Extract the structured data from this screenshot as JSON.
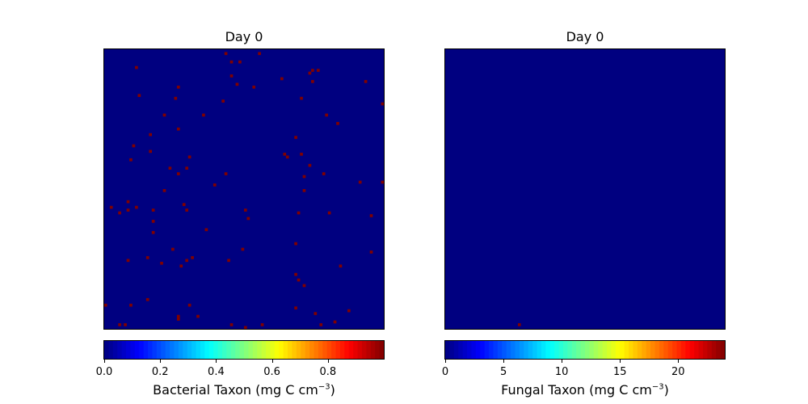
{
  "chart_data": [
    {
      "type": "heatmap",
      "title": "Day 0",
      "colormap": "jet",
      "grid": "off",
      "cbar_label_prefix": "Bacterial Taxon (mg C cm",
      "cbar_label_exp": "−3",
      "cbar_label_suffix": ")",
      "cbar_range": [
        0,
        1
      ],
      "cbar_ticks": [
        0.0,
        0.2,
        0.4,
        0.6,
        0.8
      ],
      "cbar_tick_labels": [
        "0.0",
        "0.2",
        "0.4",
        "0.6",
        "0.8"
      ],
      "grid_size": 100,
      "background_value": 0,
      "cell_value": 1,
      "nonzero_cells": [
        [
          1,
          43
        ],
        [
          1,
          55
        ],
        [
          4,
          48
        ],
        [
          4,
          45
        ],
        [
          6,
          11
        ],
        [
          7,
          76
        ],
        [
          7,
          74
        ],
        [
          8,
          73
        ],
        [
          9,
          45
        ],
        [
          10,
          63
        ],
        [
          11,
          74
        ],
        [
          11,
          93
        ],
        [
          12,
          47
        ],
        [
          13,
          26
        ],
        [
          13,
          53
        ],
        [
          16,
          12
        ],
        [
          17,
          25
        ],
        [
          17,
          70
        ],
        [
          18,
          42
        ],
        [
          19,
          99
        ],
        [
          23,
          21
        ],
        [
          23,
          79
        ],
        [
          23,
          35
        ],
        [
          26,
          83
        ],
        [
          28,
          26
        ],
        [
          30,
          16
        ],
        [
          31,
          68
        ],
        [
          34,
          10
        ],
        [
          36,
          16
        ],
        [
          37,
          64
        ],
        [
          38,
          65
        ],
        [
          37,
          70
        ],
        [
          38,
          30
        ],
        [
          39,
          9
        ],
        [
          41,
          73
        ],
        [
          42,
          23
        ],
        [
          42,
          29
        ],
        [
          44,
          78
        ],
        [
          44,
          43
        ],
        [
          44,
          26
        ],
        [
          45,
          71
        ],
        [
          47,
          91
        ],
        [
          47,
          99
        ],
        [
          48,
          39
        ],
        [
          50,
          71
        ],
        [
          50,
          21
        ],
        [
          54,
          8
        ],
        [
          55,
          28
        ],
        [
          56,
          2
        ],
        [
          57,
          8
        ],
        [
          58,
          5
        ],
        [
          56,
          11
        ],
        [
          57,
          17
        ],
        [
          57,
          29
        ],
        [
          57,
          50
        ],
        [
          58,
          69
        ],
        [
          58,
          80
        ],
        [
          59,
          95
        ],
        [
          60,
          51
        ],
        [
          61,
          17
        ],
        [
          64,
          36
        ],
        [
          65,
          17
        ],
        [
          69,
          68
        ],
        [
          71,
          24
        ],
        [
          71,
          49
        ],
        [
          72,
          95
        ],
        [
          74,
          15
        ],
        [
          75,
          8
        ],
        [
          75,
          29
        ],
        [
          74,
          31
        ],
        [
          75,
          44
        ],
        [
          76,
          20
        ],
        [
          77,
          27
        ],
        [
          77,
          84
        ],
        [
          80,
          68
        ],
        [
          82,
          69
        ],
        [
          84,
          71
        ],
        [
          89,
          15
        ],
        [
          91,
          0
        ],
        [
          91,
          9
        ],
        [
          91,
          30
        ],
        [
          92,
          68
        ],
        [
          93,
          87
        ],
        [
          94,
          75
        ],
        [
          95,
          26
        ],
        [
          95,
          33
        ],
        [
          96,
          26
        ],
        [
          98,
          5
        ],
        [
          98,
          7
        ],
        [
          98,
          45
        ],
        [
          98,
          56
        ],
        [
          99,
          50
        ],
        [
          97,
          82
        ],
        [
          98,
          77
        ]
      ]
    },
    {
      "type": "heatmap",
      "title": "Day 0",
      "colormap": "jet",
      "grid": "off",
      "cbar_label_prefix": "Fungal Taxon (mg C cm",
      "cbar_label_exp": "−3",
      "cbar_label_suffix": ")",
      "cbar_range": [
        0,
        24
      ],
      "cbar_ticks": [
        0,
        5,
        10,
        15,
        20
      ],
      "cbar_tick_labels": [
        "0",
        "5",
        "10",
        "15",
        "20"
      ],
      "grid_size": 100,
      "background_value": 0,
      "cell_value": 24,
      "nonzero_cells": [
        [
          98,
          26
        ]
      ]
    }
  ]
}
